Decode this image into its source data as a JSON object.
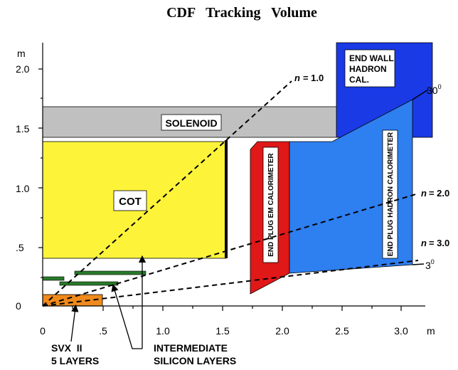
{
  "title": "CDF   Tracking   Volume",
  "axes": {
    "y_unit": "m",
    "x_unit": "m",
    "y_ticks": [
      "0",
      ".5",
      "1.0",
      "1.5",
      "2.0"
    ],
    "x_ticks": [
      "0",
      ".5",
      "1.0",
      "1.5",
      "2.0",
      "2.5",
      "3.0"
    ]
  },
  "detectors": {
    "end_wall_line1": "END WALL",
    "end_wall_line2": "HADRON",
    "end_wall_line3": "CAL.",
    "solenoid": "SOLENOID",
    "cot": "COT",
    "plug_em": "END PLUG EM CALORIMETER",
    "plug_had": "END PLUG HADRON CALORIMETER"
  },
  "eta_lines": {
    "eta_symbol": "n",
    "eta1": "= 1.0",
    "eta2": "= 2.0",
    "eta3": "= 3.0"
  },
  "angles": {
    "upper": "30",
    "lower": "3",
    "degree": "0"
  },
  "callouts": {
    "svx_line1": "SVX  II",
    "svx_line2": "5 LAYERS",
    "isl_line1": "INTERMEDIATE",
    "isl_line2": "SILICON LAYERS"
  },
  "colors": {
    "end_wall": "#1a3ae6",
    "solenoid": "#c0c0c0",
    "cot": "#fdf43a",
    "plug_em": "#e01818",
    "plug_had": "#2e7ff0",
    "silicon_layers": "#2a7a2a",
    "svx": "#f08a1c"
  }
}
